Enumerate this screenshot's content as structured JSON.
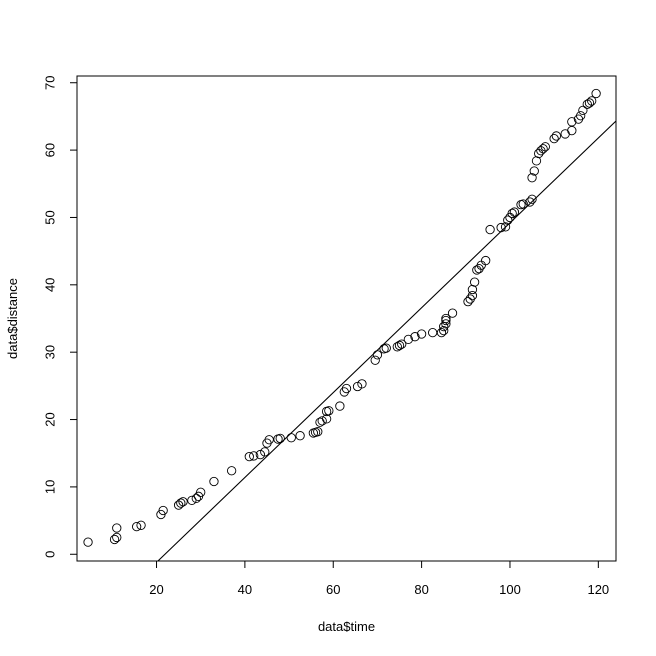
{
  "chart_data": {
    "type": "scatter",
    "title": "",
    "xlabel": "data$time",
    "ylabel": "data$distance",
    "xlim": [
      2,
      124
    ],
    "ylim": [
      -1,
      71
    ],
    "x_ticks": [
      20,
      40,
      60,
      80,
      100,
      120
    ],
    "y_ticks": [
      0,
      10,
      20,
      30,
      40,
      50,
      60,
      70
    ],
    "grid": false,
    "legend": "none",
    "points": [
      [
        4.5,
        1.8
      ],
      [
        10.5,
        2.2
      ],
      [
        11,
        2.5
      ],
      [
        11,
        3.9
      ],
      [
        15.5,
        4.1
      ],
      [
        16.5,
        4.3
      ],
      [
        21,
        5.9
      ],
      [
        21.5,
        6.5
      ],
      [
        25,
        7.3
      ],
      [
        25.5,
        7.6
      ],
      [
        26,
        7.8
      ],
      [
        28,
        8.0
      ],
      [
        29,
        8.3
      ],
      [
        29.5,
        8.6
      ],
      [
        30,
        9.2
      ],
      [
        33,
        10.8
      ],
      [
        37,
        12.4
      ],
      [
        41,
        14.5
      ],
      [
        42,
        14.6
      ],
      [
        43.5,
        14.8
      ],
      [
        44.5,
        15.2
      ],
      [
        45,
        16.5
      ],
      [
        45.5,
        17.0
      ],
      [
        47.5,
        17.1
      ],
      [
        48,
        17.2
      ],
      [
        50.5,
        17.3
      ],
      [
        52.5,
        17.6
      ],
      [
        55.5,
        18.0
      ],
      [
        56,
        18.1
      ],
      [
        56.5,
        18.2
      ],
      [
        57,
        19.6
      ],
      [
        57.5,
        19.8
      ],
      [
        58.5,
        20.1
      ],
      [
        58.5,
        21.2
      ],
      [
        59,
        21.3
      ],
      [
        61.5,
        22.0
      ],
      [
        62.5,
        24.1
      ],
      [
        63,
        24.6
      ],
      [
        65.5,
        24.9
      ],
      [
        66.5,
        25.3
      ],
      [
        69.5,
        28.8
      ],
      [
        70,
        29.6
      ],
      [
        71.5,
        30.5
      ],
      [
        72,
        30.6
      ],
      [
        74.5,
        30.8
      ],
      [
        75,
        31.0
      ],
      [
        75.5,
        31.2
      ],
      [
        77,
        31.9
      ],
      [
        78.5,
        32.3
      ],
      [
        80,
        32.7
      ],
      [
        82.5,
        32.9
      ],
      [
        84.5,
        32.9
      ],
      [
        85,
        33.2
      ],
      [
        85,
        33.8
      ],
      [
        85.5,
        34.2
      ],
      [
        85.5,
        34.7
      ],
      [
        85.5,
        35.0
      ],
      [
        87,
        35.8
      ],
      [
        90.5,
        37.5
      ],
      [
        91,
        37.9
      ],
      [
        91.5,
        38.4
      ],
      [
        91.5,
        39.3
      ],
      [
        92,
        40.4
      ],
      [
        92.5,
        42.2
      ],
      [
        93,
        42.4
      ],
      [
        93.5,
        42.9
      ],
      [
        94.5,
        43.6
      ],
      [
        95.5,
        48.2
      ],
      [
        98,
        48.5
      ],
      [
        99,
        48.6
      ],
      [
        99.5,
        49.6
      ],
      [
        100,
        50.0
      ],
      [
        100.5,
        50.6
      ],
      [
        101,
        50.8
      ],
      [
        102.5,
        51.9
      ],
      [
        103,
        52.0
      ],
      [
        104.5,
        52.3
      ],
      [
        105,
        52.7
      ],
      [
        105,
        55.9
      ],
      [
        105.5,
        56.9
      ],
      [
        106,
        58.4
      ],
      [
        106.5,
        59.5
      ],
      [
        107,
        59.9
      ],
      [
        107.5,
        60.2
      ],
      [
        108,
        60.5
      ],
      [
        110,
        61.7
      ],
      [
        110.5,
        62.1
      ],
      [
        112.5,
        62.4
      ],
      [
        114,
        62.9
      ],
      [
        114,
        64.2
      ],
      [
        115.5,
        64.6
      ],
      [
        116,
        65.1
      ],
      [
        116.5,
        65.9
      ],
      [
        117.5,
        66.8
      ],
      [
        118,
        67.0
      ],
      [
        118.5,
        67.3
      ],
      [
        119.5,
        68.4
      ]
    ],
    "fit_line": {
      "intercept": -13.8,
      "slope": 0.63
    }
  }
}
